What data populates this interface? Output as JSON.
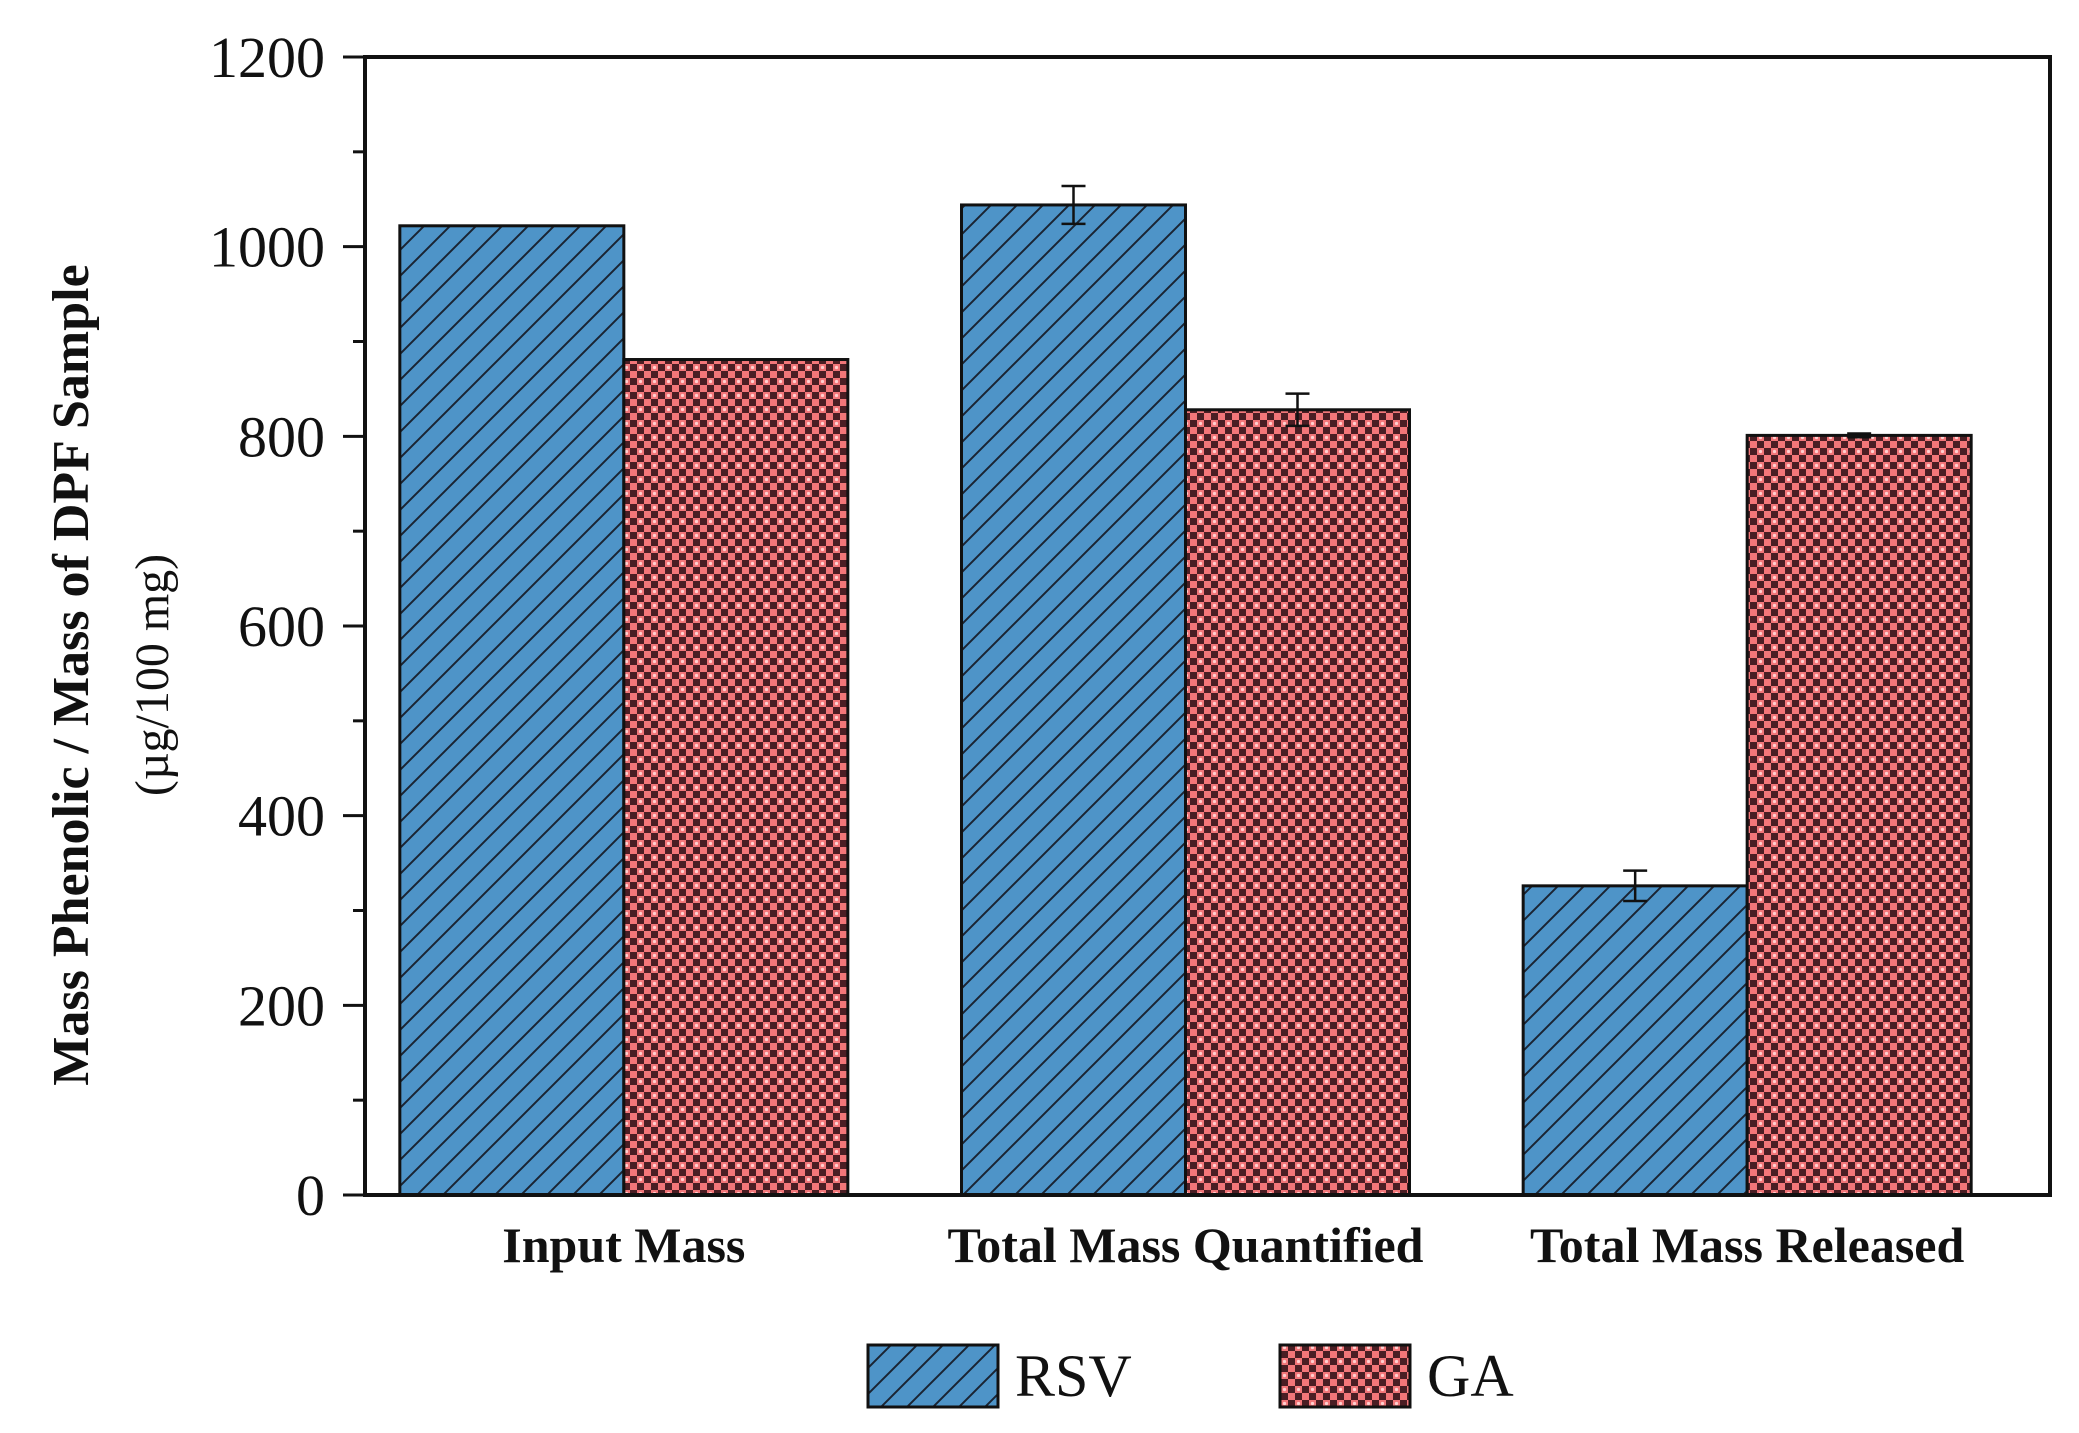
{
  "chart_data": {
    "type": "bar",
    "title": "",
    "xlabel": "",
    "ylabel": "Mass Phenolic / Mass of DPF Sample",
    "ylabel_units": "(µg/100 mg)",
    "ylim": [
      0,
      1200
    ],
    "yticks": [
      0,
      200,
      400,
      600,
      800,
      1000,
      1200
    ],
    "categories": [
      "Input Mass",
      "Total Mass Quantified",
      "Total Mass Released"
    ],
    "series": [
      {
        "name": "RSV",
        "values": [
          1022,
          1044,
          326
        ],
        "errors": [
          0,
          20,
          16
        ],
        "color": "#4e94c8",
        "pattern": "diagonal-hatch"
      },
      {
        "name": "GA",
        "values": [
          881,
          828,
          801
        ],
        "errors": [
          0,
          17,
          2
        ],
        "color": "#f27679",
        "pattern": "checker"
      }
    ],
    "legend_position": "bottom-center",
    "grid": false
  }
}
